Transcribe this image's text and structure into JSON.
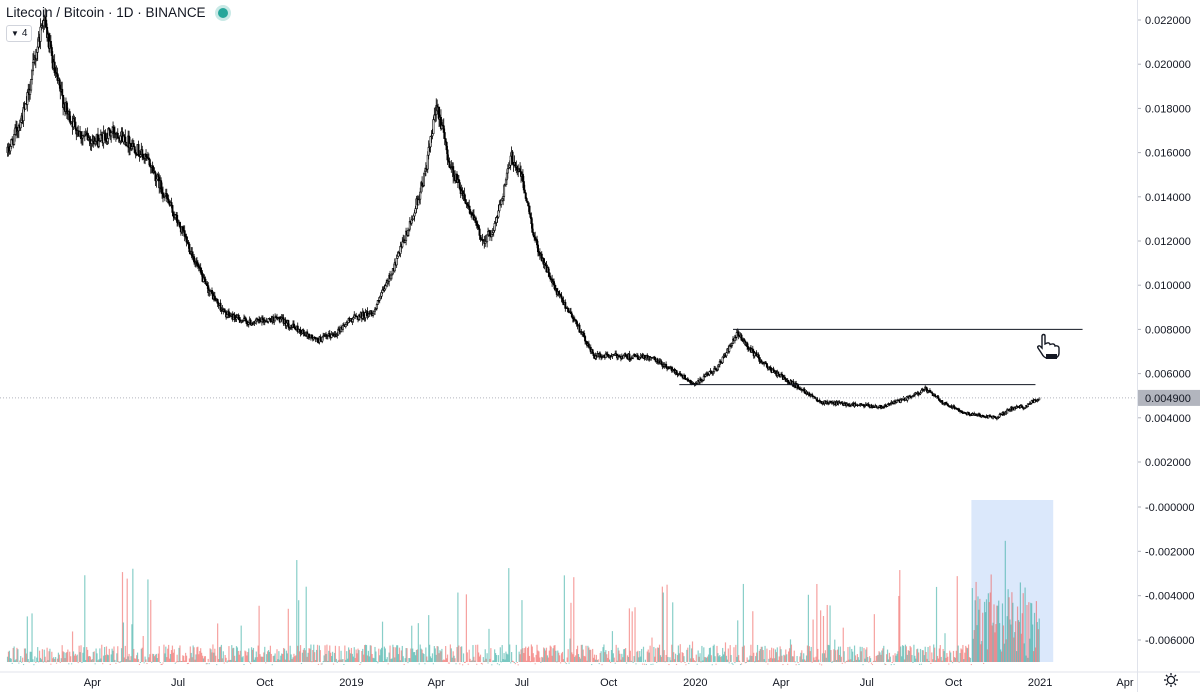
{
  "header": {
    "title": "Litecoin / Bitcoin · 1D · BINANCE",
    "collapse_label": "4",
    "collapse_icon": "chevron-down-icon"
  },
  "colors": {
    "candle": "#000000",
    "volume_up": "#26a69a",
    "volume_down": "#ef5350",
    "last_price_label_bg": "#b2b5be",
    "highlight_rect": "#dbe8fb",
    "live_dot": "#26a69a"
  },
  "chart_data": [
    {
      "type": "candlestick",
      "symbol": "Litecoin / Bitcoin",
      "interval": "1D",
      "exchange": "BINANCE",
      "x_ticks": [
        "Apr",
        "Jul",
        "Oct",
        "2019",
        "Apr",
        "Jul",
        "Oct",
        "2020",
        "Apr",
        "Jul",
        "Oct",
        "2021",
        "Apr"
      ],
      "y_ticks": [
        "0.022000",
        "0.020000",
        "0.018000",
        "0.016000",
        "0.014000",
        "0.012000",
        "0.010000",
        "0.008000",
        "0.006000",
        "0.004000",
        "0.002000"
      ],
      "ylim": [
        0.0013,
        0.0228
      ],
      "last_price": "0.004900",
      "series": [
        {
          "date": "2018-01-01",
          "price": 0.016
        },
        {
          "date": "2018-01-20",
          "price": 0.018
        },
        {
          "date": "2018-02-08",
          "price": 0.0222
        },
        {
          "date": "2018-02-20",
          "price": 0.0196
        },
        {
          "date": "2018-03-05",
          "price": 0.0178
        },
        {
          "date": "2018-03-20",
          "price": 0.0168
        },
        {
          "date": "2018-04-05",
          "price": 0.0165
        },
        {
          "date": "2018-04-25",
          "price": 0.017
        },
        {
          "date": "2018-05-15",
          "price": 0.0163
        },
        {
          "date": "2018-06-01",
          "price": 0.0155
        },
        {
          "date": "2018-06-20",
          "price": 0.0138
        },
        {
          "date": "2018-07-10",
          "price": 0.012
        },
        {
          "date": "2018-07-30",
          "price": 0.01
        },
        {
          "date": "2018-08-20",
          "price": 0.0087
        },
        {
          "date": "2018-09-15",
          "price": 0.0083
        },
        {
          "date": "2018-10-15",
          "price": 0.0085
        },
        {
          "date": "2018-11-05",
          "price": 0.008
        },
        {
          "date": "2018-11-25",
          "price": 0.0075
        },
        {
          "date": "2018-12-15",
          "price": 0.0078
        },
        {
          "date": "2019-01-01",
          "price": 0.0085
        },
        {
          "date": "2019-01-25",
          "price": 0.0088
        },
        {
          "date": "2019-02-15",
          "price": 0.0108
        },
        {
          "date": "2019-03-05",
          "price": 0.0128
        },
        {
          "date": "2019-03-20",
          "price": 0.015
        },
        {
          "date": "2019-04-02",
          "price": 0.0182
        },
        {
          "date": "2019-04-15",
          "price": 0.0155
        },
        {
          "date": "2019-05-01",
          "price": 0.014
        },
        {
          "date": "2019-05-20",
          "price": 0.012
        },
        {
          "date": "2019-06-01",
          "price": 0.0125
        },
        {
          "date": "2019-06-20",
          "price": 0.0158
        },
        {
          "date": "2019-06-30",
          "price": 0.015
        },
        {
          "date": "2019-07-15",
          "price": 0.012
        },
        {
          "date": "2019-08-05",
          "price": 0.0098
        },
        {
          "date": "2019-08-25",
          "price": 0.0085
        },
        {
          "date": "2019-09-15",
          "price": 0.0068
        },
        {
          "date": "2019-10-15",
          "price": 0.0068
        },
        {
          "date": "2019-11-15",
          "price": 0.0067
        },
        {
          "date": "2019-12-15",
          "price": 0.006
        },
        {
          "date": "2020-01-01",
          "price": 0.0055
        },
        {
          "date": "2020-01-25",
          "price": 0.0063
        },
        {
          "date": "2020-02-15",
          "price": 0.0078
        },
        {
          "date": "2020-03-01",
          "price": 0.007
        },
        {
          "date": "2020-03-20",
          "price": 0.0062
        },
        {
          "date": "2020-04-15",
          "price": 0.0055
        },
        {
          "date": "2020-05-15",
          "price": 0.0047
        },
        {
          "date": "2020-06-15",
          "price": 0.0046
        },
        {
          "date": "2020-07-15",
          "price": 0.0045
        },
        {
          "date": "2020-08-15",
          "price": 0.0049
        },
        {
          "date": "2020-09-01",
          "price": 0.0053
        },
        {
          "date": "2020-09-20",
          "price": 0.0047
        },
        {
          "date": "2020-10-15",
          "price": 0.0042
        },
        {
          "date": "2020-11-15",
          "price": 0.004
        },
        {
          "date": "2020-12-01",
          "price": 0.0044
        },
        {
          "date": "2020-12-15",
          "price": 0.0045
        },
        {
          "date": "2020-12-31",
          "price": 0.0049
        }
      ],
      "annotations": [
        {
          "type": "horizontal-line",
          "price": 0.008,
          "from": "2020-02-10",
          "to": "2021-02-15"
        },
        {
          "type": "horizontal-line",
          "price": 0.0055,
          "from": "2019-12-15",
          "to": "2020-12-27"
        }
      ]
    },
    {
      "type": "bar",
      "name": "Volume",
      "y_ticks": [
        "-0.000000",
        "-0.002000",
        "-0.004000",
        "-0.006000"
      ],
      "highlight": {
        "from": "2020-10-20",
        "to": "2020-12-31"
      }
    }
  ],
  "footer": {
    "settings_icon": "gear-icon"
  }
}
